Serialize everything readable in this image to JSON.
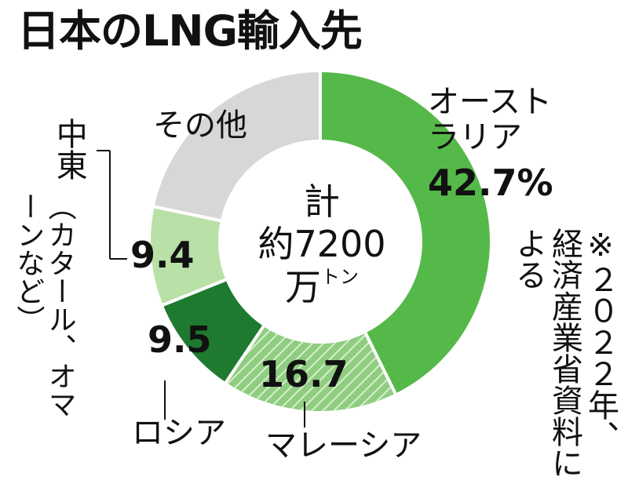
{
  "title": "日本のLNG輸入先",
  "center": {
    "line1": "計",
    "line2": "約7200",
    "line3": "万",
    "unit": "トン"
  },
  "labels": {
    "australia_name_1": "オースト",
    "australia_name_2": "ラリア",
    "australia_value": "42.7%",
    "malaysia_value": "16.7",
    "malaysia_name": "マレーシア",
    "russia_value": "9.5",
    "russia_name": "ロシア",
    "middleeast_value": "9.4",
    "middleeast_name": "中東",
    "middleeast_note": "（カタール、オマーンなど）",
    "other_name": "その他"
  },
  "note": {
    "mark": "※",
    "text": "２０２２年、経済産業省資料による"
  },
  "colors": {
    "australia": "#55b949",
    "malaysia": "#8fcd80",
    "russia": "#1e7a2e",
    "middleeast": "#b9e0a6",
    "other": "#d7d7d7"
  },
  "chart_data": {
    "type": "pie",
    "style": "donut",
    "title": "日本のLNG輸入先",
    "total": "約7200万トン",
    "unit": "%",
    "slices": [
      {
        "name": "オーストラリア",
        "value": 42.7,
        "color": "#55b949",
        "pattern": "solid"
      },
      {
        "name": "マレーシア",
        "value": 16.7,
        "color": "#8fcd80",
        "pattern": "hatched"
      },
      {
        "name": "ロシア",
        "value": 9.5,
        "color": "#1e7a2e",
        "pattern": "solid"
      },
      {
        "name": "中東（カタール、オマーンなど）",
        "value": 9.4,
        "color": "#b9e0a6",
        "pattern": "solid"
      },
      {
        "name": "その他",
        "value": 21.7,
        "color": "#d7d7d7",
        "pattern": "solid"
      }
    ],
    "start_angle_deg": 0,
    "direction": "clockwise",
    "source_note": "※２０２２年、経済産業省資料による"
  }
}
